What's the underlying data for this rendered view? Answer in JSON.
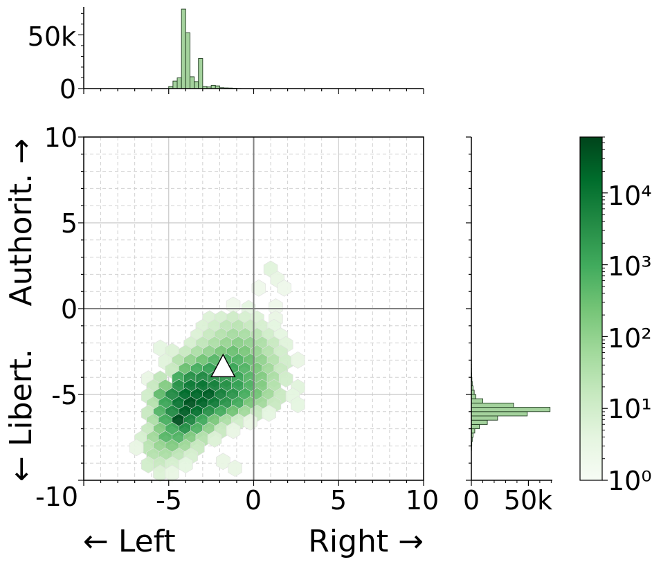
{
  "chart_data": {
    "type": "hexbin",
    "xlabel_left": "← Left",
    "xlabel_right": "Right →",
    "ylabel_bottom": "← Libert.",
    "ylabel_top": "Authorit. →",
    "xlim": [
      -10,
      10
    ],
    "ylim": [
      -10,
      10
    ],
    "x_ticks": [
      "-10",
      "-5",
      "0",
      "5",
      "10"
    ],
    "y_ticks": [
      "-5",
      "0",
      "5",
      "10"
    ],
    "grid": true,
    "colorscale": "Greens",
    "color_scale_type": "log",
    "colorbar_range": [
      1,
      60000
    ],
    "colorbar_tick_labels": [
      "10⁰",
      "10¹",
      "10²",
      "10³",
      "10⁴"
    ],
    "marker": {
      "shape": "triangle",
      "x": -1.8,
      "y": -3.4
    },
    "cells": [
      {
        "x": 1.0,
        "y": 2.3,
        "c": 5
      },
      {
        "x": 1.4,
        "y": 1.7,
        "c": 3
      },
      {
        "x": 0.3,
        "y": 1.2,
        "c": 2
      },
      {
        "x": 1.8,
        "y": 1.2,
        "c": 2
      },
      {
        "x": -1.2,
        "y": 0.2,
        "c": 2
      },
      {
        "x": -0.3,
        "y": 0.0,
        "c": 4
      },
      {
        "x": 1.3,
        "y": 0.1,
        "c": 2
      },
      {
        "x": -2.6,
        "y": -0.6,
        "c": 6
      },
      {
        "x": -1.9,
        "y": -0.6,
        "c": 8
      },
      {
        "x": -1.2,
        "y": -0.6,
        "c": 12
      },
      {
        "x": -0.5,
        "y": -0.6,
        "c": 8
      },
      {
        "x": 0.2,
        "y": -0.6,
        "c": 6
      },
      {
        "x": 1.3,
        "y": -0.6,
        "c": 3
      },
      {
        "x": -3.0,
        "y": -1.1,
        "c": 6
      },
      {
        "x": -2.3,
        "y": -1.1,
        "c": 10
      },
      {
        "x": -1.6,
        "y": -1.1,
        "c": 20
      },
      {
        "x": -0.9,
        "y": -1.1,
        "c": 25
      },
      {
        "x": -0.2,
        "y": -1.1,
        "c": 15
      },
      {
        "x": 0.5,
        "y": -1.1,
        "c": 8
      },
      {
        "x": 1.2,
        "y": -1.1,
        "c": 4
      },
      {
        "x": -3.3,
        "y": -1.6,
        "c": 6
      },
      {
        "x": -2.6,
        "y": -1.6,
        "c": 15
      },
      {
        "x": -1.9,
        "y": -1.6,
        "c": 30
      },
      {
        "x": -1.2,
        "y": -1.6,
        "c": 50
      },
      {
        "x": -0.5,
        "y": -1.6,
        "c": 45
      },
      {
        "x": 0.2,
        "y": -1.6,
        "c": 25
      },
      {
        "x": 0.9,
        "y": -1.6,
        "c": 10
      },
      {
        "x": 1.6,
        "y": -1.6,
        "c": 4
      },
      {
        "x": -3.7,
        "y": -2.1,
        "c": 8
      },
      {
        "x": -3.0,
        "y": -2.1,
        "c": 20
      },
      {
        "x": -2.3,
        "y": -2.1,
        "c": 40
      },
      {
        "x": -1.6,
        "y": -2.1,
        "c": 80
      },
      {
        "x": -0.9,
        "y": -2.1,
        "c": 120
      },
      {
        "x": -0.2,
        "y": -2.1,
        "c": 90
      },
      {
        "x": 0.5,
        "y": -2.1,
        "c": 40
      },
      {
        "x": 1.2,
        "y": -2.1,
        "c": 15
      },
      {
        "x": 1.9,
        "y": -2.1,
        "c": 5
      },
      {
        "x": -5.5,
        "y": -2.3,
        "c": 4
      },
      {
        "x": -4.8,
        "y": -2.5,
        "c": 6
      },
      {
        "x": -4.0,
        "y": -2.6,
        "c": 15
      },
      {
        "x": -3.3,
        "y": -2.6,
        "c": 40
      },
      {
        "x": -2.6,
        "y": -2.6,
        "c": 90
      },
      {
        "x": -1.9,
        "y": -2.6,
        "c": 200
      },
      {
        "x": -1.2,
        "y": -2.6,
        "c": 300
      },
      {
        "x": -0.5,
        "y": -2.6,
        "c": 200
      },
      {
        "x": 0.2,
        "y": -2.6,
        "c": 80
      },
      {
        "x": 0.9,
        "y": -2.6,
        "c": 30
      },
      {
        "x": 1.6,
        "y": -2.6,
        "c": 10
      },
      {
        "x": -5.2,
        "y": -3.1,
        "c": 5
      },
      {
        "x": -4.4,
        "y": -3.1,
        "c": 30
      },
      {
        "x": -3.7,
        "y": -3.1,
        "c": 100
      },
      {
        "x": -3.0,
        "y": -3.1,
        "c": 250
      },
      {
        "x": -2.3,
        "y": -3.1,
        "c": 500
      },
      {
        "x": -1.6,
        "y": -3.1,
        "c": 700
      },
      {
        "x": -0.9,
        "y": -3.1,
        "c": 600
      },
      {
        "x": -0.2,
        "y": -3.1,
        "c": 300
      },
      {
        "x": 0.5,
        "y": -3.1,
        "c": 100
      },
      {
        "x": 1.2,
        "y": -3.1,
        "c": 30
      },
      {
        "x": 1.9,
        "y": -3.1,
        "c": 10
      },
      {
        "x": 2.6,
        "y": -3.0,
        "c": 3
      },
      {
        "x": -4.8,
        "y": -3.6,
        "c": 15
      },
      {
        "x": -4.0,
        "y": -3.6,
        "c": 300
      },
      {
        "x": -3.3,
        "y": -3.6,
        "c": 800
      },
      {
        "x": -2.6,
        "y": -3.6,
        "c": 1500
      },
      {
        "x": -1.2,
        "y": -3.6,
        "c": 1200
      },
      {
        "x": -0.5,
        "y": -3.6,
        "c": 600
      },
      {
        "x": 0.2,
        "y": -3.6,
        "c": 200
      },
      {
        "x": 0.9,
        "y": -3.6,
        "c": 60
      },
      {
        "x": 1.6,
        "y": -3.6,
        "c": 15
      },
      {
        "x": -6.2,
        "y": -4.1,
        "c": 3
      },
      {
        "x": -5.5,
        "y": -4.1,
        "c": 20
      },
      {
        "x": -4.4,
        "y": -4.1,
        "c": 1000
      },
      {
        "x": -3.7,
        "y": -4.1,
        "c": 3000
      },
      {
        "x": -3.0,
        "y": -4.1,
        "c": 4000
      },
      {
        "x": -2.3,
        "y": -4.1,
        "c": 3000
      },
      {
        "x": -1.6,
        "y": -4.1,
        "c": 2000
      },
      {
        "x": -0.9,
        "y": -4.1,
        "c": 1200
      },
      {
        "x": -0.2,
        "y": -4.1,
        "c": 500
      },
      {
        "x": 0.5,
        "y": -4.1,
        "c": 150
      },
      {
        "x": 1.2,
        "y": -4.1,
        "c": 40
      },
      {
        "x": 1.9,
        "y": -4.1,
        "c": 10
      },
      {
        "x": -5.9,
        "y": -4.6,
        "c": 15
      },
      {
        "x": -5.2,
        "y": -4.6,
        "c": 150
      },
      {
        "x": -4.4,
        "y": -4.6,
        "c": 3000
      },
      {
        "x": -3.7,
        "y": -4.6,
        "c": 8000
      },
      {
        "x": -3.0,
        "y": -4.6,
        "c": 10000
      },
      {
        "x": -2.3,
        "y": -4.6,
        "c": 6000
      },
      {
        "x": -1.6,
        "y": -4.6,
        "c": 3000
      },
      {
        "x": -0.9,
        "y": -4.6,
        "c": 1500
      },
      {
        "x": -0.2,
        "y": -4.6,
        "c": 600
      },
      {
        "x": 0.5,
        "y": -4.6,
        "c": 150
      },
      {
        "x": 1.2,
        "y": -4.6,
        "c": 30
      },
      {
        "x": 2.6,
        "y": -4.6,
        "c": 5
      },
      {
        "x": -6.2,
        "y": -5.1,
        "c": 10
      },
      {
        "x": -5.5,
        "y": -5.1,
        "c": 400
      },
      {
        "x": -4.8,
        "y": -5.1,
        "c": 4000
      },
      {
        "x": -4.0,
        "y": -5.1,
        "c": 15000
      },
      {
        "x": -3.3,
        "y": -5.1,
        "c": 18000
      },
      {
        "x": -2.6,
        "y": -5.1,
        "c": 25000
      },
      {
        "x": -1.9,
        "y": -5.1,
        "c": 6000
      },
      {
        "x": -1.2,
        "y": -5.1,
        "c": 2500
      },
      {
        "x": -0.5,
        "y": -5.1,
        "c": 800
      },
      {
        "x": 0.2,
        "y": -5.1,
        "c": 250
      },
      {
        "x": 0.9,
        "y": -5.1,
        "c": 60
      },
      {
        "x": 1.6,
        "y": -5.1,
        "c": 15
      },
      {
        "x": 2.3,
        "y": -5.1,
        "c": 4
      },
      {
        "x": -5.9,
        "y": -5.6,
        "c": 30
      },
      {
        "x": -5.2,
        "y": -5.6,
        "c": 1200
      },
      {
        "x": -4.4,
        "y": -5.6,
        "c": 10000
      },
      {
        "x": -3.7,
        "y": -5.6,
        "c": 35000
      },
      {
        "x": -3.0,
        "y": -5.6,
        "c": 20000
      },
      {
        "x": -2.3,
        "y": -5.6,
        "c": 8000
      },
      {
        "x": -1.6,
        "y": -5.6,
        "c": 2500
      },
      {
        "x": -0.9,
        "y": -5.6,
        "c": 900
      },
      {
        "x": -0.2,
        "y": -5.6,
        "c": 200
      },
      {
        "x": 0.5,
        "y": -5.6,
        "c": 60
      },
      {
        "x": 1.2,
        "y": -5.6,
        "c": 15
      },
      {
        "x": 2.6,
        "y": -5.6,
        "c": 4
      },
      {
        "x": -6.2,
        "y": -6.1,
        "c": 15
      },
      {
        "x": -5.5,
        "y": -6.1,
        "c": 600
      },
      {
        "x": -4.8,
        "y": -6.1,
        "c": 4000
      },
      {
        "x": -4.0,
        "y": -6.1,
        "c": 25000
      },
      {
        "x": -3.3,
        "y": -6.1,
        "c": 12000
      },
      {
        "x": -2.6,
        "y": -6.1,
        "c": 3000
      },
      {
        "x": -1.9,
        "y": -6.1,
        "c": 900
      },
      {
        "x": -1.2,
        "y": -6.1,
        "c": 250
      },
      {
        "x": -0.5,
        "y": -6.1,
        "c": 60
      },
      {
        "x": 0.2,
        "y": -6.1,
        "c": 15
      },
      {
        "x": 0.9,
        "y": -6.1,
        "c": 4
      },
      {
        "x": -5.9,
        "y": -6.6,
        "c": 40
      },
      {
        "x": -5.2,
        "y": -6.6,
        "c": 800
      },
      {
        "x": -4.4,
        "y": -6.6,
        "c": 40000
      },
      {
        "x": -3.7,
        "y": -6.6,
        "c": 5000
      },
      {
        "x": -3.0,
        "y": -6.6,
        "c": 1000
      },
      {
        "x": -2.3,
        "y": -6.6,
        "c": 200
      },
      {
        "x": -1.6,
        "y": -6.6,
        "c": 40
      },
      {
        "x": -0.9,
        "y": -6.6,
        "c": 10
      },
      {
        "x": -0.2,
        "y": -6.6,
        "c": 3
      },
      {
        "x": -6.2,
        "y": -7.1,
        "c": 15
      },
      {
        "x": -5.5,
        "y": -7.1,
        "c": 150
      },
      {
        "x": -4.8,
        "y": -7.1,
        "c": 800
      },
      {
        "x": -4.0,
        "y": -7.1,
        "c": 3000
      },
      {
        "x": -3.3,
        "y": -7.1,
        "c": 600
      },
      {
        "x": -2.6,
        "y": -7.1,
        "c": 100
      },
      {
        "x": -1.9,
        "y": -7.1,
        "c": 15
      },
      {
        "x": -1.2,
        "y": -7.1,
        "c": 3
      },
      {
        "x": -6.6,
        "y": -7.6,
        "c": 8
      },
      {
        "x": -5.9,
        "y": -7.6,
        "c": 60
      },
      {
        "x": -5.2,
        "y": -7.6,
        "c": 500
      },
      {
        "x": -4.4,
        "y": -7.6,
        "c": 600
      },
      {
        "x": -3.7,
        "y": -7.6,
        "c": 150
      },
      {
        "x": -3.0,
        "y": -7.6,
        "c": 30
      },
      {
        "x": -2.3,
        "y": -7.6,
        "c": 6
      },
      {
        "x": -6.2,
        "y": -8.1,
        "c": 25
      },
      {
        "x": -5.5,
        "y": -8.1,
        "c": 80
      },
      {
        "x": -4.8,
        "y": -8.1,
        "c": 150
      },
      {
        "x": -4.0,
        "y": -8.1,
        "c": 60
      },
      {
        "x": -3.3,
        "y": -8.1,
        "c": 15
      },
      {
        "x": -6.9,
        "y": -8.1,
        "c": 3
      },
      {
        "x": -5.9,
        "y": -8.6,
        "c": 30
      },
      {
        "x": -5.2,
        "y": -8.6,
        "c": 40
      },
      {
        "x": -4.4,
        "y": -8.6,
        "c": 20
      },
      {
        "x": -3.7,
        "y": -8.6,
        "c": 8
      },
      {
        "x": -1.8,
        "y": -8.9,
        "c": 3
      },
      {
        "x": -6.2,
        "y": -9.1,
        "c": 10
      },
      {
        "x": -5.5,
        "y": -9.1,
        "c": 15
      },
      {
        "x": -4.8,
        "y": -9.1,
        "c": 8
      },
      {
        "x": -4.0,
        "y": -9.1,
        "c": 4
      },
      {
        "x": -1.1,
        "y": -9.3,
        "c": 3
      },
      {
        "x": -5.5,
        "y": -9.6,
        "c": 6
      },
      {
        "x": -4.8,
        "y": -9.6,
        "c": 3
      }
    ],
    "top_hist": {
      "y_ticks": [
        "0",
        "50k"
      ],
      "ylim": [
        0,
        76000
      ],
      "bins_x_start": [
        -5.0,
        -4.75,
        -4.5,
        -4.25,
        -4.0,
        -3.75,
        -3.5,
        -3.25,
        -3.0,
        -2.75,
        -2.5,
        -2.25,
        -2.0,
        -1.75,
        -1.5,
        -1.25,
        -1.0
      ],
      "bin_width": 0.25,
      "values": [
        2000,
        7000,
        10000,
        74000,
        52000,
        11000,
        6500,
        28000,
        2000,
        1500,
        3000,
        2500,
        800,
        600,
        500,
        300,
        100
      ]
    },
    "right_hist": {
      "x_ticks": [
        "0",
        "50k"
      ],
      "xlim": [
        0,
        71000
      ],
      "bins_y_start": [
        -8.25,
        -8.0,
        -7.75,
        -7.5,
        -7.25,
        -7.0,
        -6.75,
        -6.5,
        -6.25,
        -6.0,
        -5.75,
        -5.5,
        -5.25,
        -5.0,
        -4.75,
        -4.5,
        -4.25,
        -4.0,
        -3.75,
        -3.5,
        -3.25,
        -3.0
      ],
      "bin_width": 0.25,
      "values": [
        200,
        400,
        800,
        1500,
        3000,
        7000,
        14000,
        23000,
        49000,
        69000,
        37000,
        10000,
        4000,
        2500,
        1500,
        800,
        500,
        300,
        200,
        150,
        100,
        50
      ]
    }
  }
}
